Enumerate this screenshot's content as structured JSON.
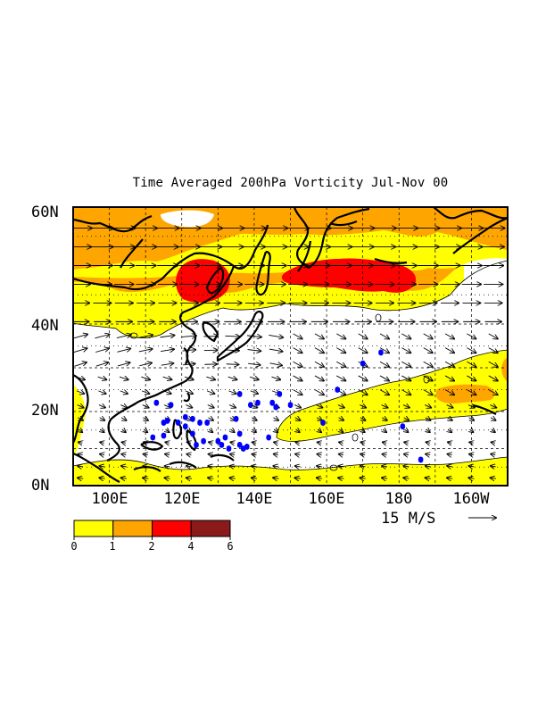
{
  "title": "Time Averaged 200hPa Vorticity Jul-Nov 00",
  "map": {
    "lon_range": [
      90,
      210
    ],
    "lat_range": [
      0,
      60
    ],
    "lat_ticks": [
      {
        "label": "60N",
        "lat": 60
      },
      {
        "label": "40N",
        "lat": 40
      },
      {
        "label": "20N",
        "lat": 20
      },
      {
        "label": "0N",
        "lat": 0
      }
    ],
    "lon_ticks": [
      {
        "label": "100E",
        "lon": 100
      },
      {
        "label": "120E",
        "lon": 120
      },
      {
        "label": "140E",
        "lon": 140
      },
      {
        "label": "160E",
        "lon": 160
      },
      {
        "label": "180",
        "lon": 180
      },
      {
        "label": "160W",
        "lon": 200
      }
    ],
    "grid": "dashed",
    "contour_zero_labels": [
      "0",
      "0",
      "0",
      "0",
      "0"
    ]
  },
  "vector_reference": {
    "label": "15 M/S",
    "speed": 15
  },
  "colorbar": {
    "levels": [
      "0",
      "1",
      "2",
      "4",
      "6"
    ],
    "colors": [
      "#ffff00",
      "#ffa500",
      "#ff0000",
      "#8b1a1a"
    ]
  },
  "storm_track_color": "#0000ff"
}
